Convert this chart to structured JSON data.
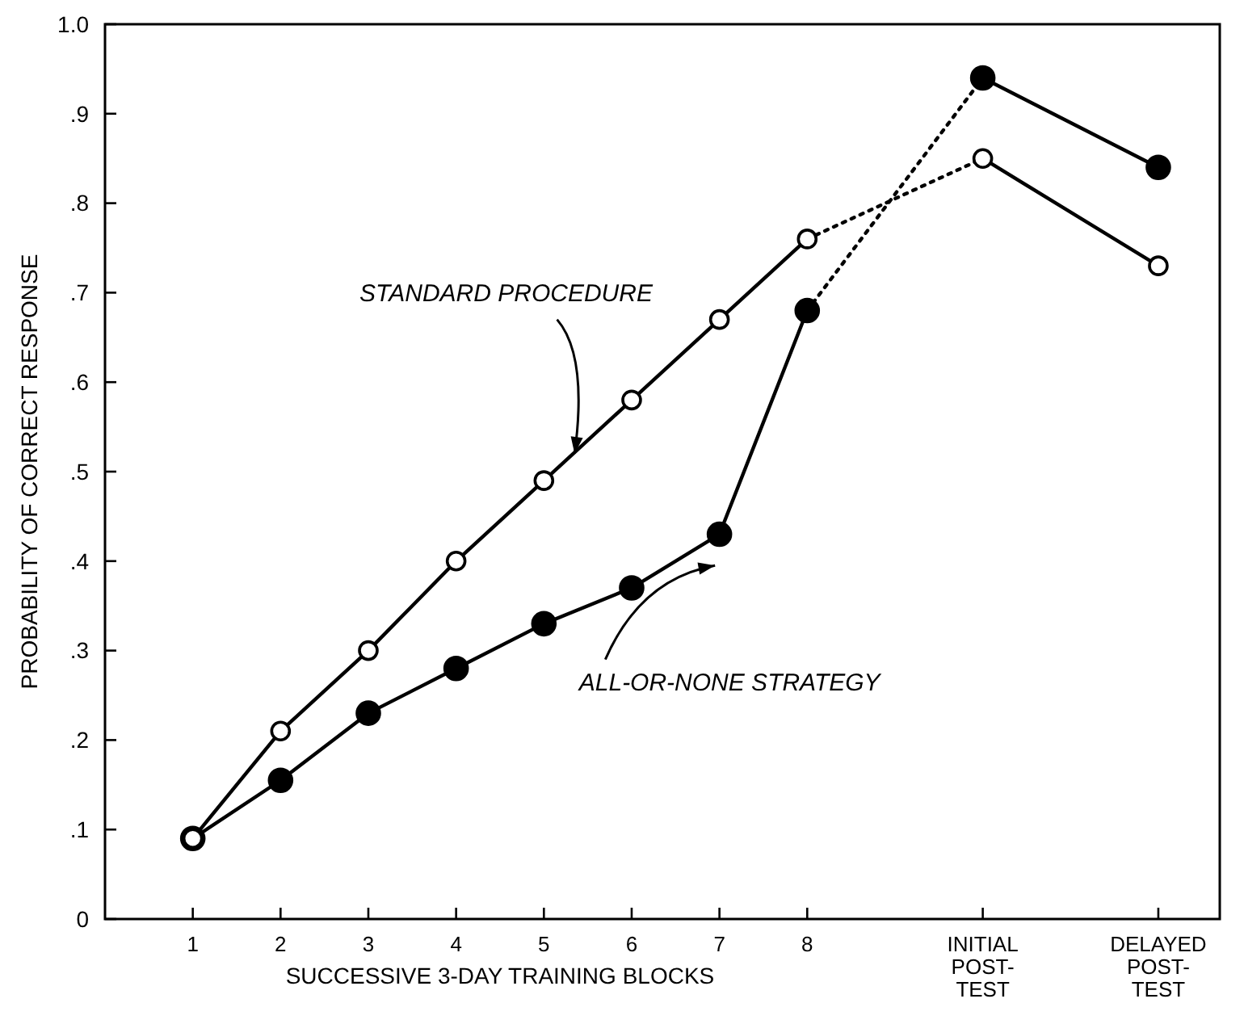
{
  "chart_data": {
    "type": "line",
    "xlabel": "SUCCESSIVE 3-DAY TRAINING BLOCKS",
    "ylabel": "PROBABILITY OF CORRECT RESPONSE",
    "xlim": [
      0,
      12.7
    ],
    "ylim": [
      0,
      1.0
    ],
    "xticks": [
      1,
      2,
      3,
      4,
      5,
      6,
      7,
      8,
      {
        "value": 10,
        "label": "INITIAL POST-TEST"
      },
      {
        "value": 12,
        "label": "DELAYED POST-TEST"
      }
    ],
    "yticks": [
      0,
      {
        "value": 0.1,
        "label": ".1"
      },
      {
        "value": 0.2,
        "label": ".2"
      },
      {
        "value": 0.3,
        "label": ".3"
      },
      {
        "value": 0.4,
        "label": ".4"
      },
      {
        "value": 0.5,
        "label": ".5"
      },
      {
        "value": 0.6,
        "label": ".6"
      },
      {
        "value": 0.7,
        "label": ".7"
      },
      {
        "value": 0.8,
        "label": ".8"
      },
      {
        "value": 0.9,
        "label": ".9"
      },
      {
        "value": 1.0,
        "label": "1.0"
      }
    ],
    "series": [
      {
        "name": "STANDARD PROCEDURE",
        "color": "#000000",
        "colors": [
          "#ffffff",
          "#ffffff",
          "#ffffff",
          "#ffffff",
          "#ffffff",
          "#ffffff",
          "#ffffff",
          "#ffffff"
        ],
        "marker": "circle",
        "line_style": "solid",
        "x": [
          1,
          2,
          3,
          4,
          5,
          6,
          7,
          8
        ],
        "values": [
          0.09,
          0.21,
          0.3,
          0.4,
          0.49,
          0.58,
          0.67,
          0.76
        ]
      },
      {
        "name": "ALL-OR-NONE STRATEGY",
        "color": "#000000",
        "marker": "circle",
        "line_style": "solid",
        "x": [
          1,
          2,
          3,
          4,
          5,
          6,
          7,
          8
        ],
        "values": [
          0.09,
          0.155,
          0.23,
          0.28,
          0.33,
          0.37,
          0.43,
          0.68
        ]
      },
      {
        "color": "#000000",
        "line_style": "dotted",
        "x": [
          8,
          10
        ],
        "values": [
          0.76,
          0.85
        ]
      },
      {
        "color": "#000000",
        "line_style": "dotted",
        "x": [
          8,
          10
        ],
        "values": [
          0.68,
          0.94
        ]
      },
      {
        "color": "#000000",
        "colors": [
          "#ffffff",
          "#ffffff"
        ],
        "marker": "circle",
        "line_style": "solid",
        "x": [
          10,
          12
        ],
        "values": [
          0.85,
          0.73
        ]
      },
      {
        "color": "#000000",
        "marker": "circle",
        "line_style": "solid",
        "x": [
          10,
          12
        ],
        "values": [
          0.94,
          0.84
        ]
      }
    ]
  }
}
